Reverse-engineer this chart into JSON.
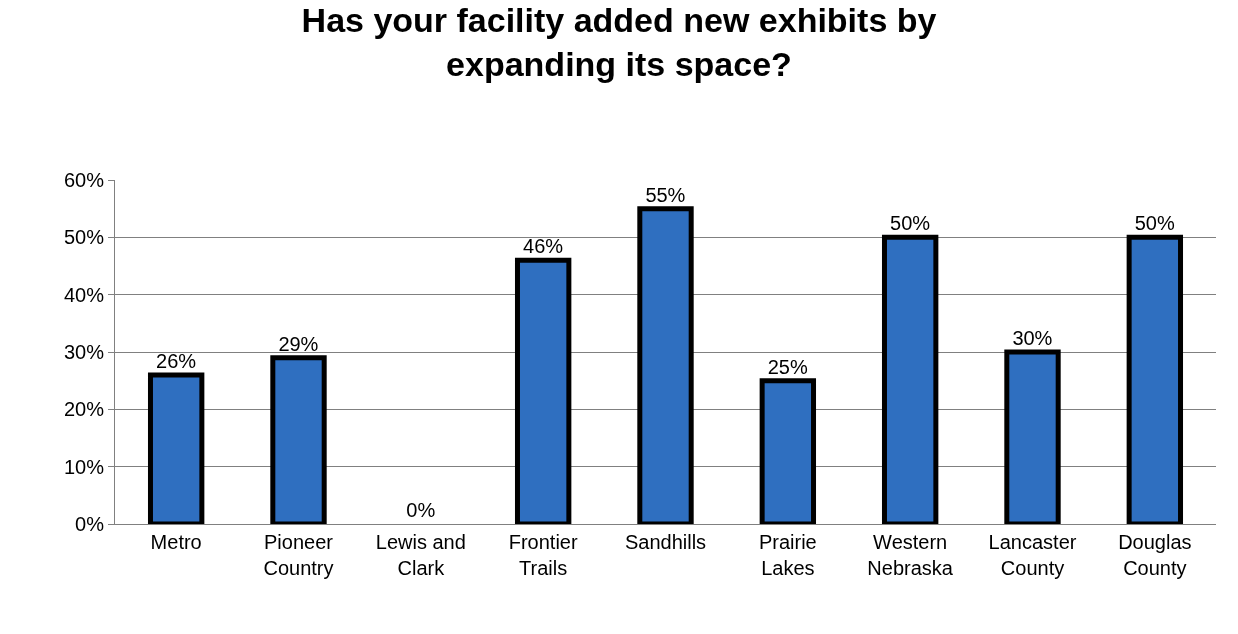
{
  "chart_data": {
    "type": "bar",
    "title": "Has your facility added new exhibits by\nexpanding its space?",
    "categories": [
      "Metro",
      "Pioneer Country",
      "Lewis and Clark",
      "Frontier Trails",
      "Sandhills",
      "Prairie Lakes",
      "Western Nebraska",
      "Lancaster County",
      "Douglas County"
    ],
    "values": [
      26,
      29,
      0,
      46,
      55,
      25,
      50,
      30,
      50
    ],
    "value_labels": [
      "26%",
      "29%",
      "0%",
      "46%",
      "55%",
      "25%",
      "50%",
      "30%",
      "50%"
    ],
    "color": "#2f6fc0",
    "ylim": [
      0,
      60
    ],
    "yticks": [
      {
        "value": 0,
        "label": "0%"
      },
      {
        "value": 10,
        "label": "10%"
      },
      {
        "value": 20,
        "label": "20%"
      },
      {
        "value": 30,
        "label": "30%"
      },
      {
        "value": 40,
        "label": "40%"
      },
      {
        "value": 50,
        "label": "50%"
      },
      {
        "value": 60,
        "label": "60%"
      }
    ],
    "grid": "y",
    "legend": false
  }
}
